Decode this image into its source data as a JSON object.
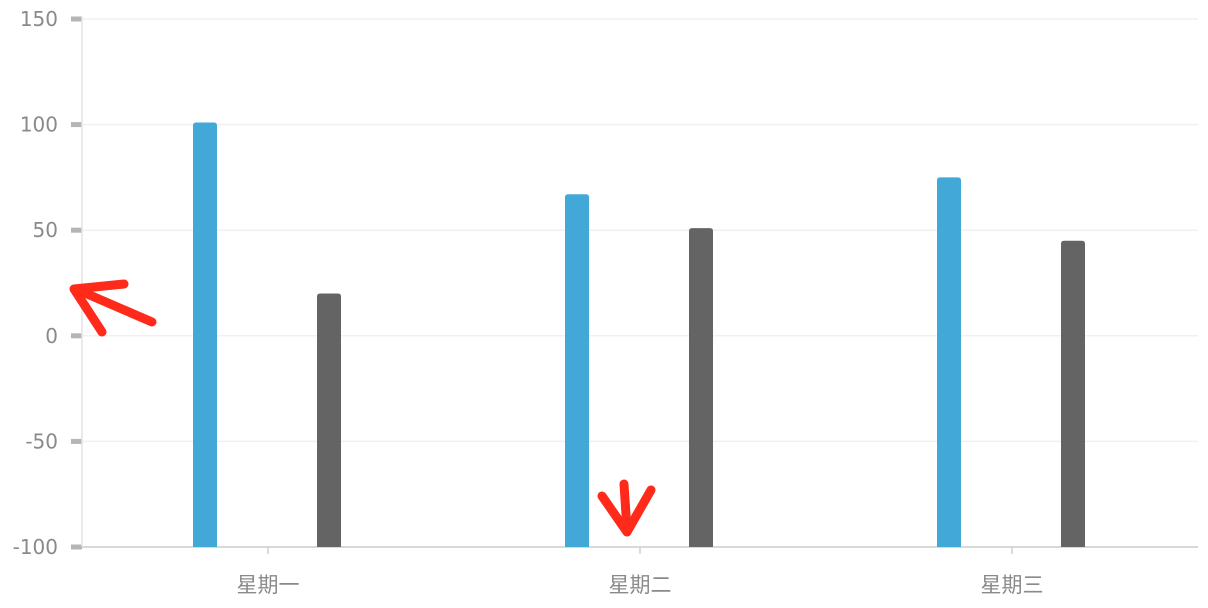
{
  "chart_data": {
    "type": "bar",
    "categories": [
      "星期一",
      "星期二",
      "星期三"
    ],
    "series": [
      {
        "values": [
          101,
          67,
          75
        ],
        "color": "#41a8d8"
      },
      {
        "values": [
          20,
          51,
          45
        ],
        "color": "#646464"
      }
    ],
    "ylim": [
      -100,
      150
    ],
    "yticks": [
      150,
      100,
      50,
      0,
      -50,
      -100
    ],
    "grid": true,
    "legend": "none",
    "annotations": [
      {
        "type": "arrow",
        "color": "#ff2a1a",
        "direction": "up-left",
        "near_y": 25
      },
      {
        "type": "arrow",
        "color": "#ff2a1a",
        "direction": "down",
        "near_category": "星期二"
      }
    ]
  }
}
